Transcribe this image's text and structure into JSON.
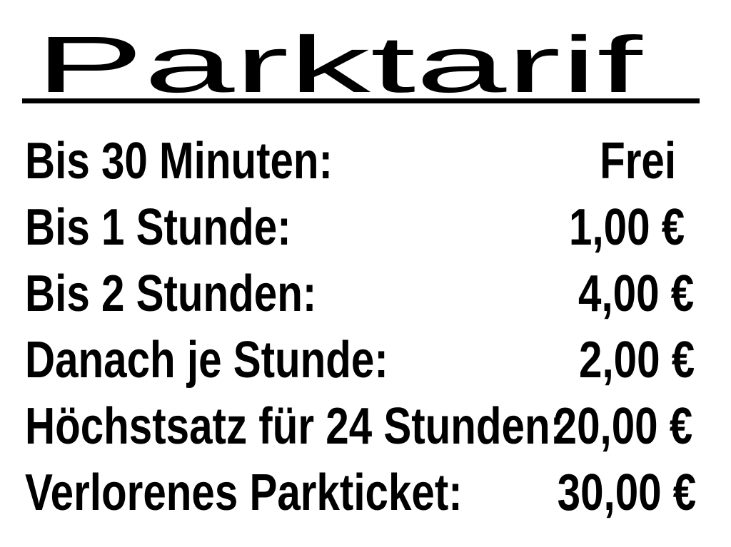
{
  "sign": {
    "title": "Parktarif",
    "rows": [
      {
        "label": "Bis 30 Minuten:",
        "value": "Frei"
      },
      {
        "label": "Bis 1 Stunde:",
        "value": "1,00 €"
      },
      {
        "label": "Bis 2 Stunden:",
        "value": "4,00 €"
      },
      {
        "label": "Danach je Stunde:",
        "value": "2,00 €"
      },
      {
        "label": "Höchstsatz für 24 Stunden:",
        "value": "20,00 €"
      },
      {
        "label": "Verlorenes Parkticket:",
        "value": "30,00 €"
      }
    ],
    "colors": {
      "text": "#000000",
      "background": "#ffffff"
    }
  }
}
